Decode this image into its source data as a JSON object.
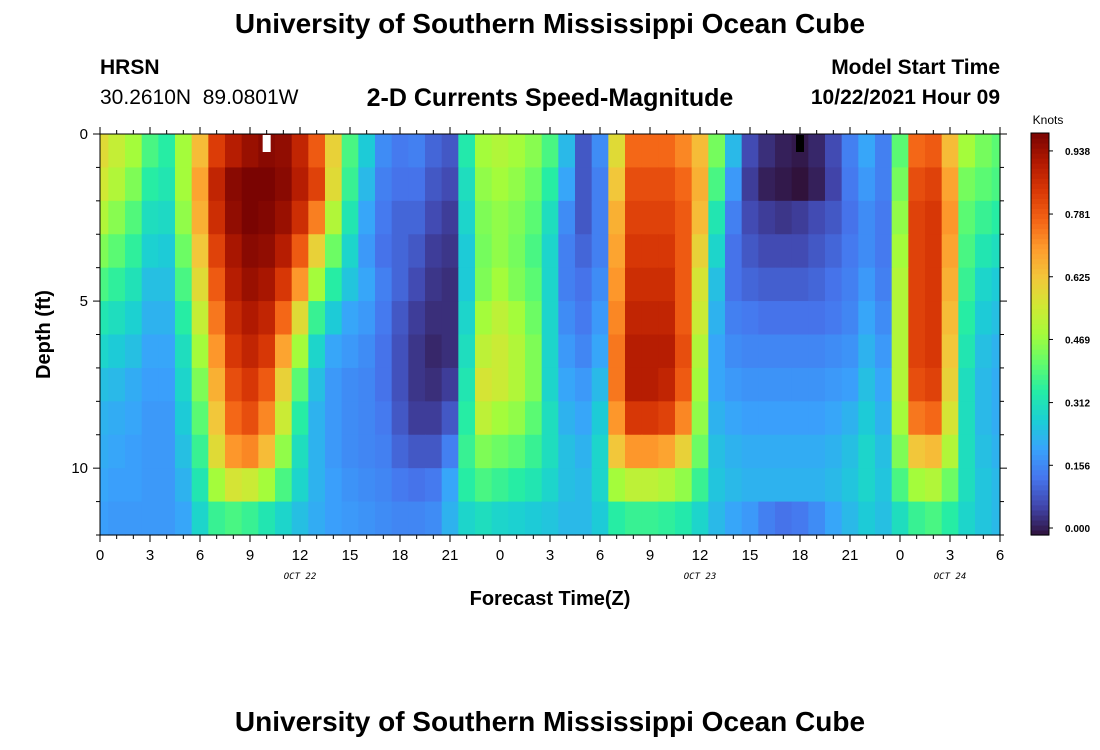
{
  "header": {
    "title": "University of Southern Mississippi Ocean Cube",
    "station": "HRSN",
    "coords": "30.2610N  89.0801W",
    "chart_title": "2-D Currents Speed-Magnitude",
    "start_label": "Model Start Time",
    "start_value": "10/22/2021 Hour 09"
  },
  "footer": {
    "title": "University of Southern Mississippi Ocean Cube"
  },
  "colors": {
    "scale": [
      "#30123b",
      "#4145ab",
      "#4675ed",
      "#39a2fc",
      "#1bcfd4",
      "#24eca6",
      "#61fc6c",
      "#a4fc3b",
      "#d1e834",
      "#f3c63a",
      "#fe9b2d",
      "#f36315",
      "#d93806",
      "#b11901",
      "#7a0402"
    ]
  },
  "chart_data": {
    "type": "heatmap",
    "title": "2-D Currents Speed-Magnitude",
    "xlabel": "Forecast Time(Z)",
    "ylabel": "Depth (ft)",
    "x_start_hour": 0,
    "x_end_hour": 54,
    "x_tick_labels": [
      "0",
      "3",
      "6",
      "9",
      "12",
      "15",
      "18",
      "21",
      "0",
      "3",
      "6",
      "9",
      "12",
      "15",
      "18",
      "21",
      "0",
      "3",
      "6"
    ],
    "date_labels": [
      {
        "text": "OCT 22",
        "hour": 12
      },
      {
        "text": "OCT 23",
        "hour": 36
      },
      {
        "text": "OCT 24",
        "hour": 51
      }
    ],
    "y_ticks": [
      0,
      5,
      10
    ],
    "ylim": [
      0,
      12
    ],
    "colorbar": {
      "label": "Knots",
      "min": 0.0,
      "max": 1.0,
      "tick_values": [
        0.0,
        0.156,
        0.312,
        0.469,
        0.625,
        0.781,
        0.938
      ],
      "tick_labels": [
        "0.000",
        "0.156",
        "0.312",
        "0.469",
        "0.625",
        "0.781",
        "0.938"
      ]
    },
    "time_hours": [
      0,
      1,
      2,
      3,
      4,
      5,
      6,
      7,
      8,
      9,
      10,
      11,
      12,
      13,
      14,
      15,
      16,
      17,
      18,
      19,
      20,
      21,
      22,
      23,
      24,
      25,
      26,
      27,
      28,
      29,
      30,
      31,
      32,
      33,
      34,
      35,
      36,
      37,
      38,
      39,
      40,
      41,
      42,
      43,
      44,
      45,
      46,
      47,
      48,
      49,
      50,
      51,
      52,
      53,
      54
    ],
    "depths_ft": [
      0.5,
      1.5,
      2.5,
      3.5,
      4.5,
      5.5,
      6.5,
      7.5,
      8.5,
      9.5,
      10.5,
      11.5
    ],
    "speed_knots": [
      [
        0.6,
        0.55,
        0.5,
        0.4,
        0.36,
        0.5,
        0.66,
        0.85,
        0.92,
        0.96,
        0.98,
        0.97,
        0.9,
        0.8,
        0.62,
        0.4,
        0.28,
        0.18,
        0.15,
        0.16,
        0.12,
        0.1,
        0.35,
        0.5,
        0.52,
        0.5,
        0.47,
        0.4,
        0.25,
        0.1,
        0.18,
        0.6,
        0.78,
        0.78,
        0.78,
        0.74,
        0.66,
        0.45,
        0.25,
        0.08,
        0.04,
        0.02,
        0.01,
        0.03,
        0.08,
        0.16,
        0.22,
        0.16,
        0.42,
        0.78,
        0.8,
        0.66,
        0.5,
        0.45,
        0.42
      ],
      [
        0.57,
        0.52,
        0.46,
        0.36,
        0.34,
        0.5,
        0.7,
        0.9,
        0.98,
        1.0,
        1.0,
        0.98,
        0.92,
        0.84,
        0.6,
        0.38,
        0.25,
        0.16,
        0.14,
        0.14,
        0.1,
        0.08,
        0.32,
        0.48,
        0.5,
        0.48,
        0.44,
        0.36,
        0.22,
        0.1,
        0.16,
        0.64,
        0.82,
        0.82,
        0.82,
        0.78,
        0.68,
        0.4,
        0.2,
        0.06,
        0.02,
        0.01,
        0.0,
        0.02,
        0.07,
        0.15,
        0.2,
        0.16,
        0.45,
        0.82,
        0.84,
        0.7,
        0.45,
        0.42,
        0.4
      ],
      [
        0.52,
        0.47,
        0.41,
        0.32,
        0.31,
        0.48,
        0.68,
        0.88,
        0.97,
        1.0,
        0.99,
        0.96,
        0.88,
        0.75,
        0.52,
        0.34,
        0.22,
        0.15,
        0.12,
        0.12,
        0.08,
        0.06,
        0.3,
        0.46,
        0.48,
        0.46,
        0.42,
        0.32,
        0.18,
        0.1,
        0.16,
        0.68,
        0.84,
        0.84,
        0.84,
        0.8,
        0.66,
        0.34,
        0.16,
        0.08,
        0.06,
        0.05,
        0.06,
        0.08,
        0.1,
        0.14,
        0.18,
        0.15,
        0.48,
        0.84,
        0.86,
        0.72,
        0.42,
        0.38,
        0.36
      ],
      [
        0.46,
        0.42,
        0.37,
        0.29,
        0.28,
        0.44,
        0.64,
        0.84,
        0.94,
        0.98,
        0.97,
        0.92,
        0.8,
        0.62,
        0.44,
        0.3,
        0.2,
        0.14,
        0.12,
        0.1,
        0.06,
        0.05,
        0.28,
        0.45,
        0.48,
        0.45,
        0.4,
        0.3,
        0.16,
        0.12,
        0.16,
        0.7,
        0.86,
        0.86,
        0.86,
        0.8,
        0.62,
        0.3,
        0.14,
        0.1,
        0.08,
        0.08,
        0.08,
        0.1,
        0.12,
        0.15,
        0.18,
        0.15,
        0.5,
        0.84,
        0.86,
        0.7,
        0.4,
        0.34,
        0.32
      ],
      [
        0.4,
        0.37,
        0.33,
        0.26,
        0.26,
        0.4,
        0.6,
        0.8,
        0.92,
        0.96,
        0.94,
        0.86,
        0.72,
        0.5,
        0.36,
        0.27,
        0.22,
        0.16,
        0.12,
        0.08,
        0.05,
        0.04,
        0.28,
        0.46,
        0.5,
        0.46,
        0.42,
        0.3,
        0.16,
        0.14,
        0.18,
        0.72,
        0.88,
        0.88,
        0.88,
        0.8,
        0.58,
        0.26,
        0.14,
        0.12,
        0.11,
        0.11,
        0.11,
        0.12,
        0.14,
        0.16,
        0.2,
        0.16,
        0.52,
        0.84,
        0.86,
        0.68,
        0.38,
        0.3,
        0.28
      ],
      [
        0.34,
        0.32,
        0.29,
        0.24,
        0.24,
        0.36,
        0.55,
        0.76,
        0.89,
        0.93,
        0.9,
        0.78,
        0.6,
        0.38,
        0.28,
        0.22,
        0.2,
        0.15,
        0.1,
        0.06,
        0.04,
        0.04,
        0.3,
        0.5,
        0.54,
        0.5,
        0.44,
        0.3,
        0.18,
        0.15,
        0.2,
        0.74,
        0.9,
        0.9,
        0.9,
        0.8,
        0.56,
        0.24,
        0.16,
        0.15,
        0.14,
        0.14,
        0.14,
        0.14,
        0.15,
        0.17,
        0.22,
        0.18,
        0.52,
        0.84,
        0.86,
        0.66,
        0.36,
        0.28,
        0.26
      ],
      [
        0.3,
        0.28,
        0.26,
        0.22,
        0.22,
        0.32,
        0.5,
        0.72,
        0.86,
        0.9,
        0.86,
        0.7,
        0.5,
        0.3,
        0.22,
        0.2,
        0.18,
        0.14,
        0.09,
        0.05,
        0.03,
        0.04,
        0.32,
        0.54,
        0.56,
        0.52,
        0.46,
        0.3,
        0.2,
        0.17,
        0.22,
        0.76,
        0.92,
        0.92,
        0.92,
        0.82,
        0.52,
        0.22,
        0.18,
        0.17,
        0.17,
        0.17,
        0.17,
        0.17,
        0.18,
        0.19,
        0.24,
        0.2,
        0.52,
        0.84,
        0.86,
        0.64,
        0.34,
        0.26,
        0.24
      ],
      [
        0.26,
        0.25,
        0.23,
        0.21,
        0.21,
        0.3,
        0.46,
        0.68,
        0.82,
        0.86,
        0.8,
        0.62,
        0.42,
        0.26,
        0.2,
        0.18,
        0.17,
        0.14,
        0.09,
        0.05,
        0.04,
        0.06,
        0.34,
        0.58,
        0.56,
        0.52,
        0.46,
        0.3,
        0.22,
        0.2,
        0.25,
        0.76,
        0.92,
        0.92,
        0.9,
        0.8,
        0.5,
        0.22,
        0.2,
        0.19,
        0.19,
        0.19,
        0.19,
        0.19,
        0.2,
        0.21,
        0.26,
        0.22,
        0.52,
        0.82,
        0.84,
        0.62,
        0.32,
        0.25,
        0.23
      ],
      [
        0.24,
        0.23,
        0.22,
        0.2,
        0.2,
        0.28,
        0.42,
        0.64,
        0.78,
        0.82,
        0.74,
        0.56,
        0.36,
        0.24,
        0.2,
        0.18,
        0.17,
        0.15,
        0.1,
        0.06,
        0.06,
        0.1,
        0.36,
        0.54,
        0.5,
        0.48,
        0.42,
        0.32,
        0.24,
        0.22,
        0.28,
        0.72,
        0.86,
        0.86,
        0.84,
        0.74,
        0.48,
        0.24,
        0.22,
        0.21,
        0.21,
        0.21,
        0.21,
        0.21,
        0.22,
        0.24,
        0.28,
        0.24,
        0.5,
        0.76,
        0.78,
        0.58,
        0.32,
        0.25,
        0.23
      ],
      [
        0.23,
        0.22,
        0.21,
        0.2,
        0.2,
        0.26,
        0.38,
        0.6,
        0.72,
        0.74,
        0.66,
        0.48,
        0.32,
        0.24,
        0.2,
        0.18,
        0.17,
        0.16,
        0.12,
        0.1,
        0.1,
        0.16,
        0.38,
        0.46,
        0.44,
        0.42,
        0.38,
        0.32,
        0.26,
        0.24,
        0.3,
        0.64,
        0.72,
        0.72,
        0.7,
        0.62,
        0.44,
        0.26,
        0.24,
        0.23,
        0.23,
        0.23,
        0.23,
        0.23,
        0.24,
        0.26,
        0.3,
        0.26,
        0.46,
        0.64,
        0.66,
        0.52,
        0.32,
        0.26,
        0.24
      ],
      [
        0.22,
        0.21,
        0.21,
        0.2,
        0.2,
        0.24,
        0.34,
        0.5,
        0.58,
        0.56,
        0.5,
        0.4,
        0.3,
        0.24,
        0.21,
        0.19,
        0.18,
        0.17,
        0.15,
        0.14,
        0.15,
        0.22,
        0.36,
        0.4,
        0.38,
        0.36,
        0.34,
        0.3,
        0.26,
        0.25,
        0.3,
        0.5,
        0.54,
        0.54,
        0.52,
        0.48,
        0.38,
        0.27,
        0.25,
        0.24,
        0.24,
        0.24,
        0.24,
        0.24,
        0.25,
        0.27,
        0.3,
        0.27,
        0.4,
        0.5,
        0.52,
        0.44,
        0.32,
        0.27,
        0.25
      ],
      [
        0.21,
        0.2,
        0.2,
        0.2,
        0.2,
        0.22,
        0.3,
        0.38,
        0.4,
        0.38,
        0.34,
        0.3,
        0.26,
        0.23,
        0.21,
        0.2,
        0.19,
        0.18,
        0.17,
        0.17,
        0.18,
        0.24,
        0.3,
        0.32,
        0.3,
        0.29,
        0.28,
        0.27,
        0.25,
        0.25,
        0.28,
        0.36,
        0.38,
        0.38,
        0.37,
        0.35,
        0.3,
        0.25,
        0.22,
        0.2,
        0.16,
        0.14,
        0.15,
        0.18,
        0.22,
        0.25,
        0.28,
        0.26,
        0.32,
        0.38,
        0.4,
        0.36,
        0.3,
        0.27,
        0.25
      ]
    ]
  }
}
